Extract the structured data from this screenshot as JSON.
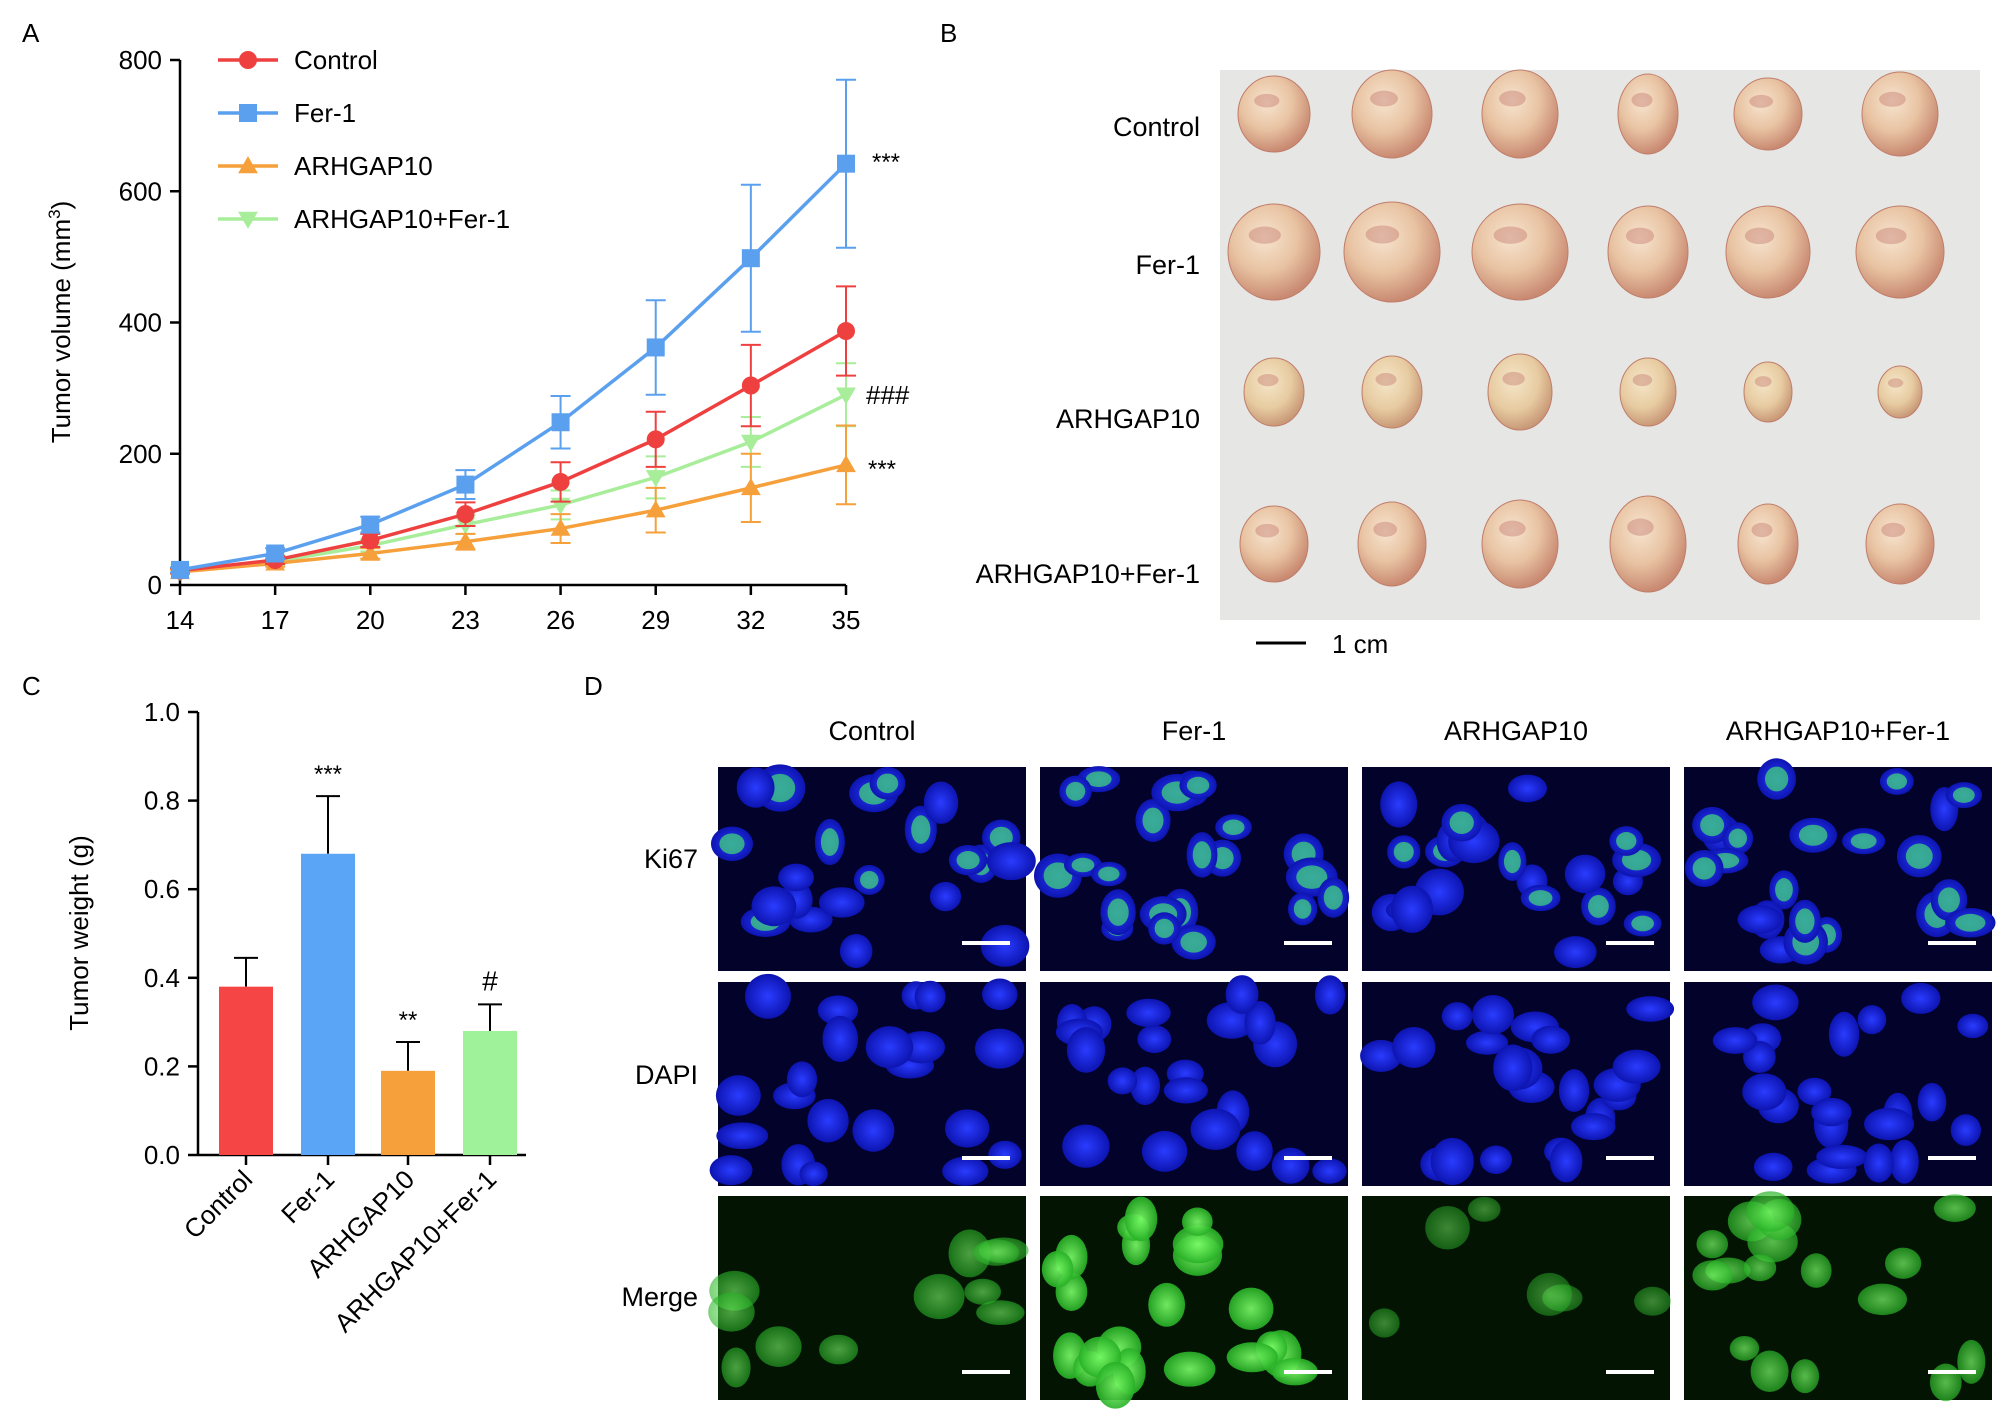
{
  "panels": {
    "a": "A",
    "b": "B",
    "c": "C",
    "d": "D"
  },
  "chart_data": [
    {
      "type": "line",
      "ylabel_main": "Tumor volume (mm",
      "ylabel_sup": "3",
      "ylabel_tail": ")",
      "x": [
        14,
        17,
        20,
        23,
        26,
        29,
        32,
        35
      ],
      "x_ticks": [
        "14",
        "17",
        "20",
        "23",
        "26",
        "29",
        "32",
        "35"
      ],
      "ylim": [
        0,
        800
      ],
      "y_ticks": [
        "0",
        "200",
        "400",
        "600",
        "800"
      ],
      "legend_position": "top-left",
      "series": [
        {
          "name": "Control",
          "color": "#ef4040",
          "marker": "circle",
          "values": [
            22,
            38,
            68,
            108,
            157,
            222,
            304,
            387
          ],
          "errors": [
            4,
            6,
            10,
            18,
            30,
            42,
            62,
            68
          ]
        },
        {
          "name": "Fer-1",
          "color": "#5aa0ee",
          "marker": "square",
          "values": [
            23,
            48,
            92,
            153,
            248,
            362,
            498,
            642
          ],
          "errors": [
            4,
            8,
            12,
            22,
            40,
            72,
            112,
            128
          ]
        },
        {
          "name": "ARHGAP10",
          "color": "#f6a03c",
          "marker": "triangle-up",
          "values": [
            20,
            33,
            48,
            66,
            86,
            114,
            148,
            183
          ],
          "errors": [
            3,
            5,
            8,
            12,
            22,
            34,
            52,
            60
          ]
        },
        {
          "name": "ARHGAP10+Fer-1",
          "color": "#a8ee9a",
          "marker": "triangle-down",
          "values": [
            21,
            36,
            60,
            92,
            122,
            164,
            218,
            290
          ],
          "errors": [
            3,
            5,
            9,
            14,
            22,
            32,
            38,
            48
          ]
        }
      ],
      "annotations": [
        "***",
        "###",
        "***"
      ]
    },
    {
      "type": "bar",
      "ylabel": "Tumor weight (g)",
      "categories": [
        "Control",
        "Fer-1",
        "ARHGAP10",
        "ARHGAP10+Fer-1"
      ],
      "values": [
        0.38,
        0.68,
        0.19,
        0.28
      ],
      "errors": [
        0.065,
        0.13,
        0.065,
        0.06
      ],
      "colors": [
        "#f54545",
        "#5aa5f5",
        "#f6a03c",
        "#a0f29a"
      ],
      "significance": [
        "",
        "***",
        "**",
        "#"
      ],
      "ylim": [
        0,
        1.0
      ],
      "y_ticks": [
        "0.0",
        "0.2",
        "0.4",
        "0.6",
        "0.8",
        "1.0"
      ]
    }
  ],
  "photo": {
    "rows": [
      "Control",
      "Fer-1",
      "ARHGAP10",
      "ARHGAP10+Fer-1"
    ],
    "scale_label": "1 cm"
  },
  "micrographs": {
    "columns": [
      "Control",
      "Fer-1",
      "ARHGAP10",
      "ARHGAP10+Fer-1"
    ],
    "rows": [
      "Ki67",
      "DAPI",
      "Merge"
    ]
  }
}
